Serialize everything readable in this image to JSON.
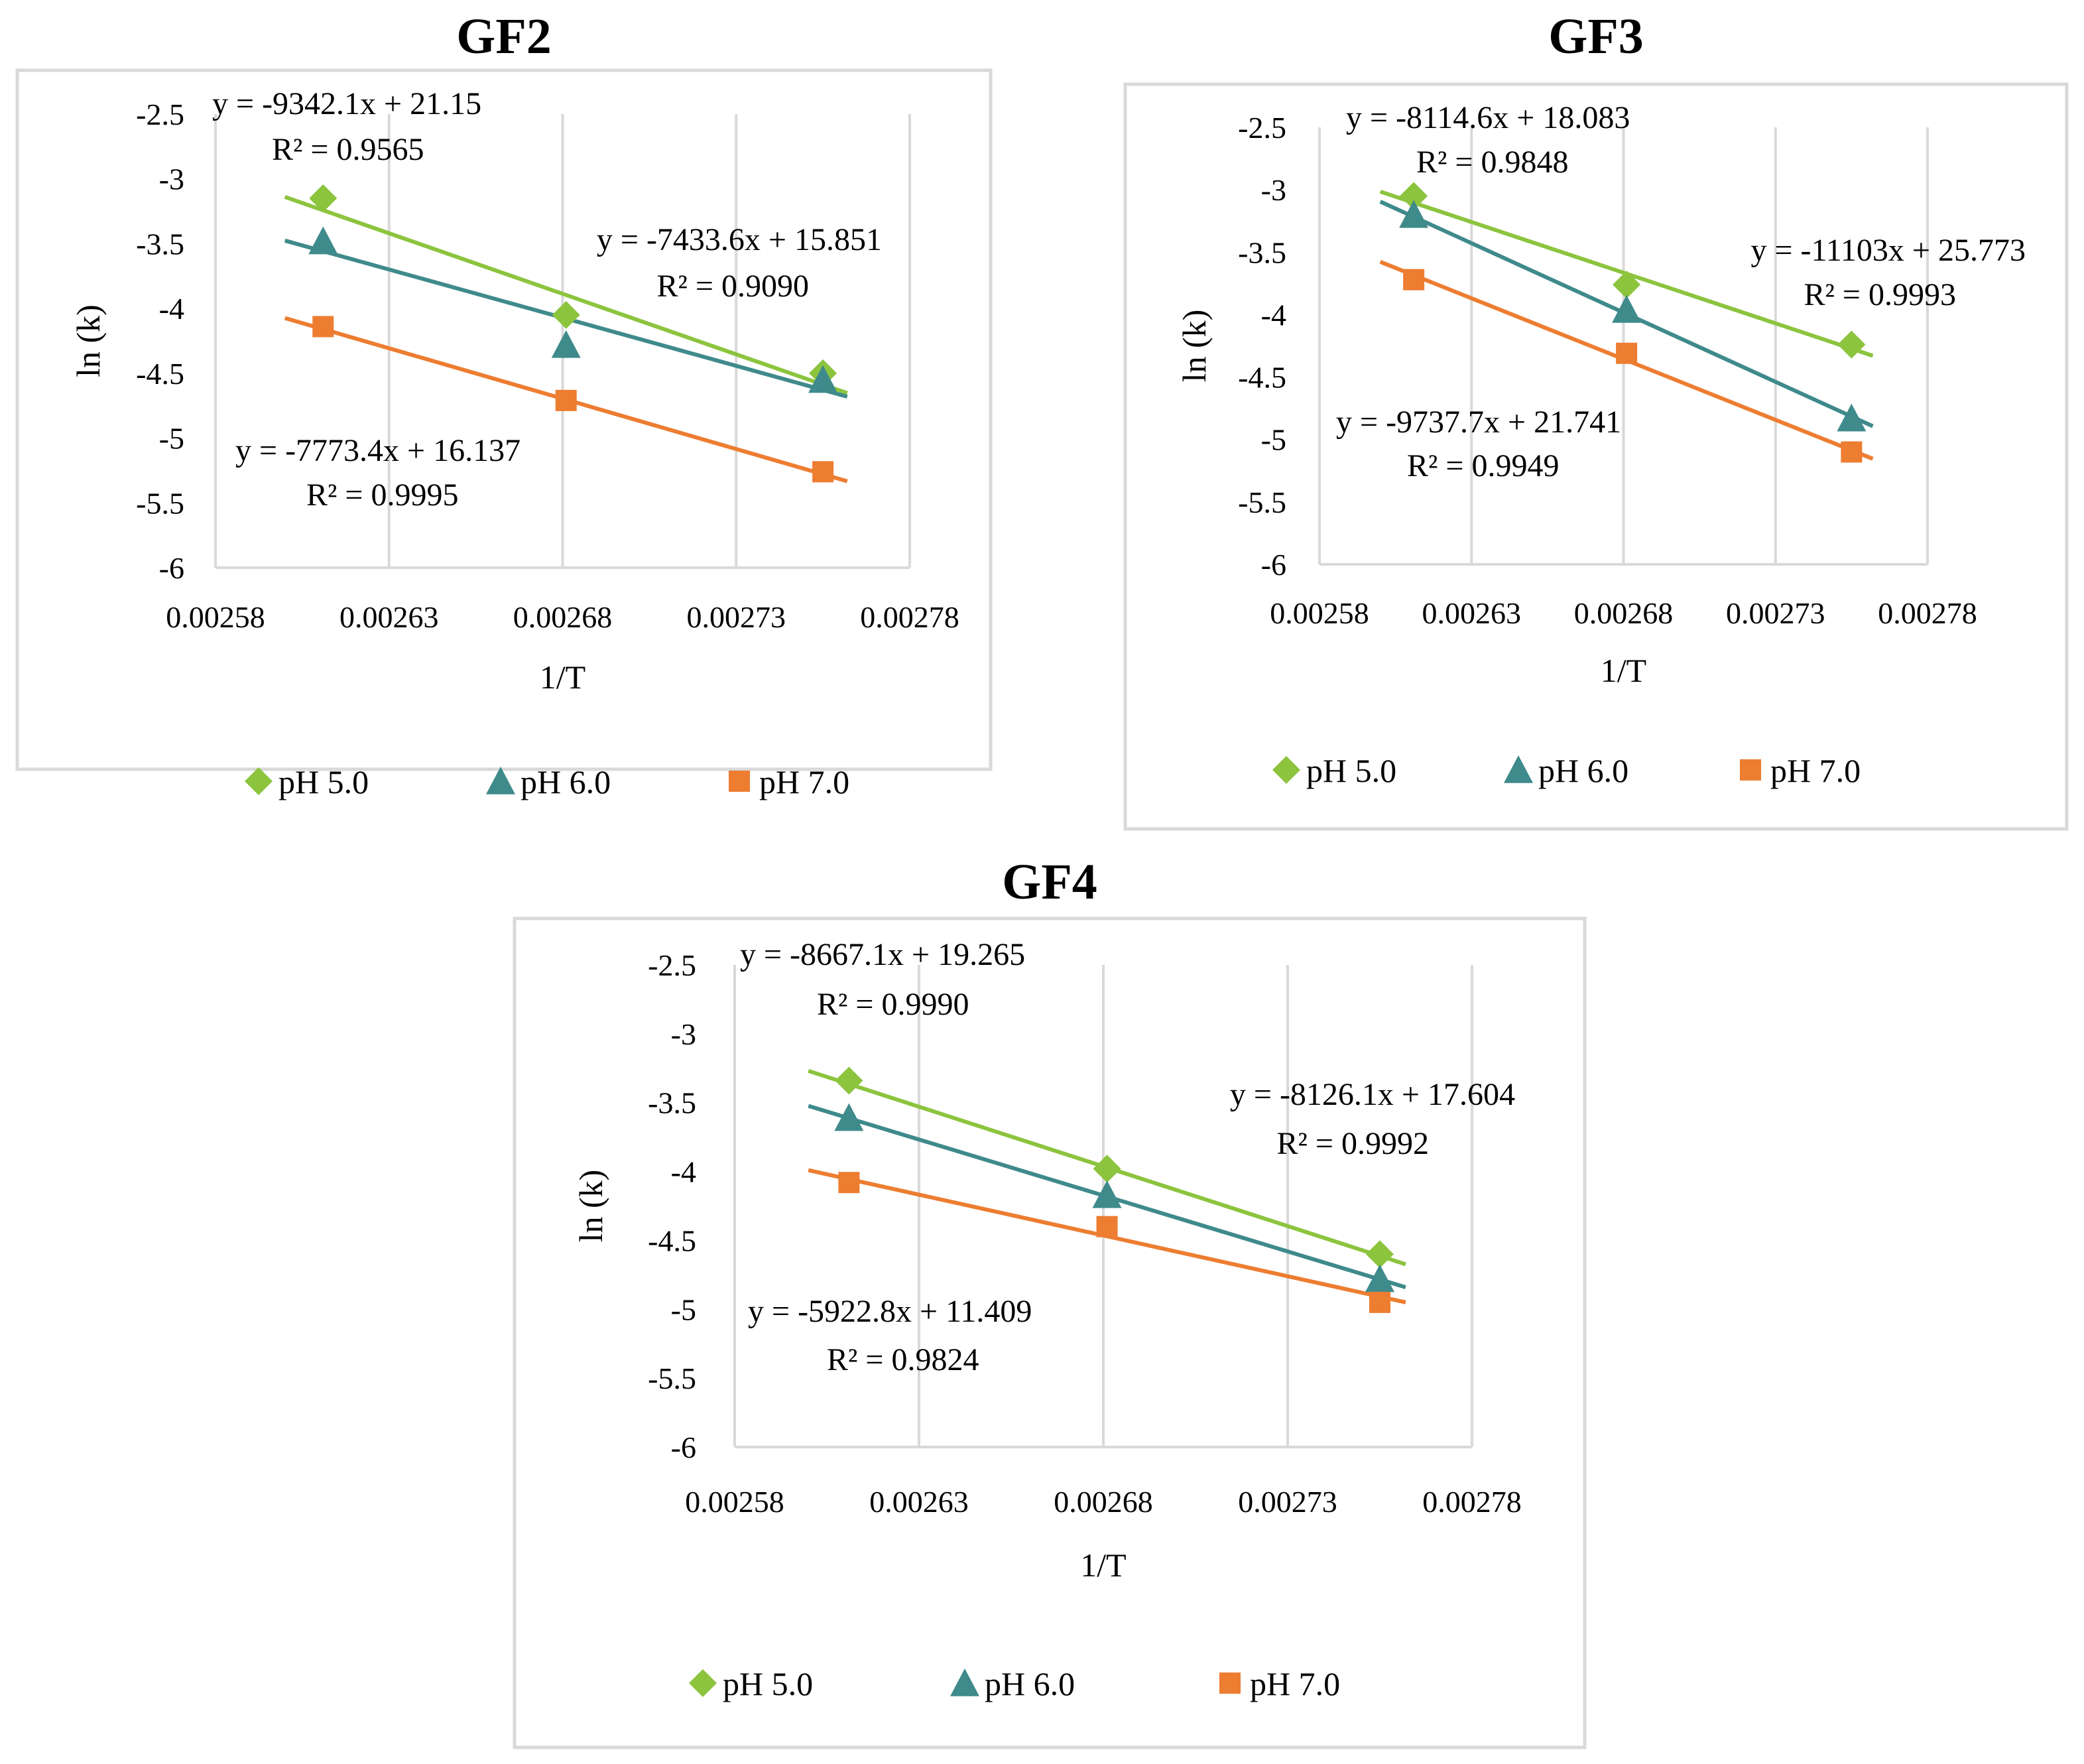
{
  "chart_data": [
    {
      "type": "scatter",
      "title": "GF2",
      "xlabel": "1/T",
      "ylabel": "ln (k)",
      "xlim": [
        0.00258,
        0.00278
      ],
      "ylim": [
        -6,
        -2.5
      ],
      "xticks": [
        "0.00258",
        "0.00263",
        "0.00268",
        "0.00273",
        "0.00278"
      ],
      "yticks": [
        "-2.5",
        "-3",
        "-3.5",
        "-4",
        "-4.5",
        "-5",
        "-5.5",
        "-6"
      ],
      "grid": "vertical",
      "legend_position": "bottom",
      "series": [
        {
          "name": "pH 5.0",
          "marker": "diamond",
          "color": "#8cc43e",
          "x": [
            0.002611,
            0.002681,
            0.002755
          ],
          "y": [
            -3.15,
            -4.05,
            -4.5
          ],
          "fit": {
            "slope": -9342.1,
            "intercept": 21.15
          },
          "equation": "y = -9342.1x + 21.15",
          "r2": "R² = 0.9565"
        },
        {
          "name": "pH 6.0",
          "marker": "triangle",
          "color": "#3f8a8b",
          "x": [
            0.002611,
            0.002681,
            0.002755
          ],
          "y": [
            -3.48,
            -4.28,
            -4.55
          ],
          "fit": {
            "slope": -7433.6,
            "intercept": 15.851
          },
          "equation": "y = -7433.6x + 15.851",
          "r2": "R² = 0.9090"
        },
        {
          "name": "pH 7.0",
          "marker": "square",
          "color": "#ed7d31",
          "x": [
            0.002611,
            0.002681,
            0.002755
          ],
          "y": [
            -4.14,
            -4.71,
            -5.26
          ],
          "fit": {
            "slope": -7773.4,
            "intercept": 16.137
          },
          "equation": "y = -7773.4x + 16.137",
          "r2": "R² = 0.9995"
        }
      ]
    },
    {
      "type": "scatter",
      "title": "GF3",
      "xlabel": "1/T",
      "ylabel": "ln (k)",
      "xlim": [
        0.00258,
        0.00278
      ],
      "ylim": [
        -6,
        -2.5
      ],
      "xticks": [
        "0.00258",
        "0.00263",
        "0.00268",
        "0.00273",
        "0.00278"
      ],
      "yticks": [
        "-2.5",
        "-3",
        "-3.5",
        "-4",
        "-4.5",
        "-5",
        "-5.5",
        "-6"
      ],
      "grid": "vertical",
      "legend_position": "bottom",
      "series": [
        {
          "name": "pH 5.0",
          "marker": "diamond",
          "color": "#8cc43e",
          "x": [
            0.002611,
            0.002681,
            0.002755
          ],
          "y": [
            -3.05,
            -3.76,
            -4.24
          ],
          "fit": {
            "slope": -8114.6,
            "intercept": 18.083
          },
          "equation": "y = -8114.6x + 18.083",
          "r2": "R² = 0.9848"
        },
        {
          "name": "pH 6.0",
          "marker": "triangle",
          "color": "#3f8a8b",
          "x": [
            0.002611,
            0.002681,
            0.002755
          ],
          "y": [
            -3.2,
            -3.96,
            -4.83
          ],
          "fit": {
            "slope": -11103,
            "intercept": 25.773
          },
          "equation": "y = -11103x + 25.773",
          "r2": "R² = 0.9993"
        },
        {
          "name": "pH 7.0",
          "marker": "square",
          "color": "#ed7d31",
          "x": [
            0.002611,
            0.002681,
            0.002755
          ],
          "y": [
            -3.72,
            -4.31,
            -5.1
          ],
          "fit": {
            "slope": -9737.7,
            "intercept": 21.741
          },
          "equation": "y = -9737.7x + 21.741",
          "r2": "R² = 0.9949"
        }
      ]
    },
    {
      "type": "scatter",
      "title": "GF4",
      "xlabel": "1/T",
      "ylabel": "ln (k)",
      "xlim": [
        0.00258,
        0.00278
      ],
      "ylim": [
        -6,
        -2.5
      ],
      "xticks": [
        "0.00258",
        "0.00263",
        "0.00268",
        "0.00273",
        "0.00278"
      ],
      "yticks": [
        "-2.5",
        "-3",
        "-3.5",
        "-4",
        "-4.5",
        "-5",
        "-5.5",
        "-6"
      ],
      "grid": "vertical",
      "legend_position": "bottom",
      "series": [
        {
          "name": "pH 5.0",
          "marker": "diamond",
          "color": "#8cc43e",
          "x": [
            0.002611,
            0.002681,
            0.002755
          ],
          "y": [
            -3.34,
            -3.98,
            -4.6
          ],
          "fit": {
            "slope": -8667.1,
            "intercept": 19.265
          },
          "equation": "y = -8667.1x + 19.265",
          "r2": "R² = 0.9990"
        },
        {
          "name": "pH 6.0",
          "marker": "triangle",
          "color": "#3f8a8b",
          "x": [
            0.002611,
            0.002681,
            0.002755
          ],
          "y": [
            -3.61,
            -4.17,
            -4.78
          ],
          "fit": {
            "slope": -8126.1,
            "intercept": 17.604
          },
          "equation": "y = -8126.1x + 17.604",
          "r2": "R² = 0.9992"
        },
        {
          "name": "pH 7.0",
          "marker": "square",
          "color": "#ed7d31",
          "x": [
            0.002611,
            0.002681,
            0.002755
          ],
          "y": [
            -4.08,
            -4.4,
            -4.95
          ],
          "fit": {
            "slope": -5922.8,
            "intercept": 11.409
          },
          "equation": "y = -5922.8x + 11.409",
          "r2": "R² = 0.9824"
        }
      ]
    }
  ]
}
